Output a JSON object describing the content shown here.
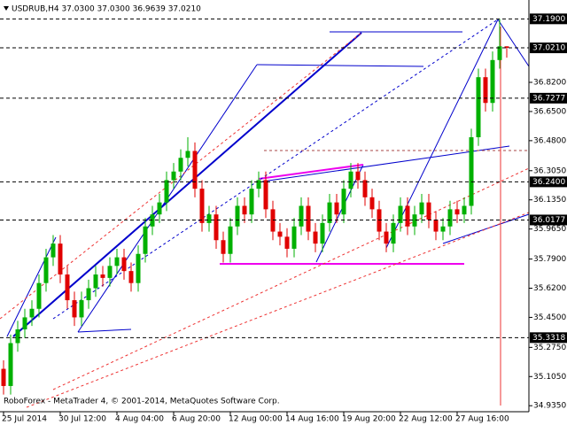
{
  "chart_data": {
    "type": "candlestick",
    "title": "USDRUB,H4 37.0300 37.0300 36.9639 37.0210",
    "footer": "RoboForex - MetaTrader 4, © 2001-2014, MetaQuotes Software Corp.",
    "categories": [
      "25 Jul 2014",
      null,
      null,
      null,
      null,
      null,
      null,
      null,
      "30 Jul 12:00",
      null,
      null,
      null,
      null,
      null,
      null,
      null,
      "4 Aug 04:00",
      null,
      null,
      null,
      null,
      null,
      null,
      null,
      "6 Aug 20:00",
      null,
      null,
      null,
      null,
      null,
      null,
      null,
      "12 Aug 00:00",
      null,
      null,
      null,
      null,
      null,
      null,
      null,
      "14 Aug 16:00",
      null,
      null,
      null,
      null,
      null,
      null,
      null,
      "19 Aug 20:00",
      null,
      null,
      null,
      null,
      null,
      null,
      null,
      "22 Aug 12:00",
      null,
      null,
      null,
      null,
      null,
      null,
      null,
      "27 Aug 16:00",
      null,
      null,
      null,
      null,
      null,
      null,
      null
    ],
    "open": [
      35.15,
      35.05,
      35.3,
      35.38,
      35.45,
      35.5,
      35.65,
      35.8,
      35.88,
      35.7,
      35.55,
      35.45,
      35.55,
      35.62,
      35.7,
      35.68,
      35.75,
      35.8,
      35.72,
      35.65,
      35.82,
      35.98,
      36.05,
      36.12,
      36.25,
      36.3,
      36.38,
      36.42,
      36.2,
      36.0,
      36.05,
      35.9,
      35.82,
      35.98,
      36.1,
      36.05,
      36.2,
      36.25,
      36.08,
      35.95,
      35.92,
      35.85,
      35.98,
      36.1,
      35.95,
      35.88,
      36.0,
      36.12,
      36.05,
      36.2,
      36.3,
      36.25,
      36.15,
      36.08,
      35.95,
      35.88,
      36.0,
      36.1,
      35.98,
      36.05,
      36.12,
      36.02,
      35.95,
      35.98,
      36.08,
      36.05,
      36.1,
      36.5,
      36.85,
      36.7,
      36.95,
      37.03
    ],
    "high": [
      35.2,
      35.35,
      35.43,
      35.5,
      35.55,
      35.7,
      35.85,
      35.93,
      35.93,
      35.75,
      35.6,
      35.6,
      35.67,
      35.75,
      35.75,
      35.8,
      35.85,
      35.85,
      35.77,
      35.87,
      36.03,
      36.1,
      36.17,
      36.3,
      36.35,
      36.43,
      36.5,
      36.47,
      36.25,
      36.1,
      36.1,
      35.95,
      36.03,
      36.15,
      36.15,
      36.25,
      36.3,
      36.3,
      36.13,
      36.0,
      35.97,
      36.03,
      36.15,
      36.15,
      36.0,
      36.05,
      36.17,
      36.17,
      36.25,
      36.35,
      36.35,
      36.3,
      36.2,
      36.13,
      36.0,
      36.05,
      36.15,
      36.15,
      36.1,
      36.17,
      36.17,
      36.07,
      36.03,
      36.13,
      36.13,
      36.15,
      36.55,
      36.9,
      36.9,
      37.0,
      37.19,
      37.03
    ],
    "low": [
      35.0,
      35.0,
      35.25,
      35.33,
      35.4,
      35.45,
      35.6,
      35.75,
      35.65,
      35.5,
      35.4,
      35.4,
      35.5,
      35.57,
      35.63,
      35.63,
      35.7,
      35.67,
      35.6,
      35.6,
      35.77,
      35.93,
      36.0,
      36.07,
      36.2,
      36.25,
      36.33,
      36.15,
      35.95,
      35.95,
      35.85,
      35.77,
      35.77,
      35.93,
      36.0,
      36.0,
      36.15,
      36.03,
      35.9,
      35.87,
      35.8,
      35.8,
      35.93,
      35.9,
      35.83,
      35.83,
      35.95,
      36.0,
      36.0,
      36.15,
      36.2,
      36.1,
      36.03,
      35.9,
      35.83,
      35.83,
      35.95,
      35.93,
      35.93,
      36.0,
      35.97,
      35.9,
      35.9,
      35.93,
      36.0,
      36.0,
      36.05,
      36.45,
      36.65,
      36.65,
      36.9,
      36.9639
    ],
    "close": [
      35.05,
      35.3,
      35.38,
      35.45,
      35.5,
      35.65,
      35.8,
      35.88,
      35.7,
      35.55,
      35.45,
      35.55,
      35.62,
      35.7,
      35.68,
      35.75,
      35.8,
      35.72,
      35.65,
      35.82,
      35.98,
      36.05,
      36.12,
      36.25,
      36.3,
      36.38,
      36.42,
      36.2,
      36.0,
      36.05,
      35.9,
      35.82,
      35.98,
      36.1,
      36.05,
      36.2,
      36.25,
      36.08,
      35.95,
      35.92,
      35.85,
      35.98,
      36.1,
      35.95,
      35.88,
      36.0,
      36.12,
      36.05,
      36.2,
      36.3,
      36.25,
      36.15,
      36.08,
      35.95,
      35.88,
      36.0,
      36.1,
      35.98,
      36.05,
      36.12,
      36.02,
      35.95,
      35.98,
      36.08,
      36.05,
      36.1,
      36.5,
      36.85,
      36.7,
      36.95,
      37.03,
      37.021
    ],
    "up_color": "#00b000",
    "down_color": "#e00000",
    "ylim": [
      34.9,
      37.3
    ],
    "yticks": [
      {
        "value": 36.82,
        "label": "36.8200"
      },
      {
        "value": 36.65,
        "label": "36.6500"
      },
      {
        "value": 36.48,
        "label": "36.4800"
      },
      {
        "value": 36.305,
        "label": "36.3050"
      },
      {
        "value": 36.135,
        "label": "36.1350"
      },
      {
        "value": 35.965,
        "label": "35.9650"
      },
      {
        "value": 35.79,
        "label": "35.7900"
      },
      {
        "value": 35.62,
        "label": "35.6200"
      },
      {
        "value": 35.45,
        "label": "35.4500"
      },
      {
        "value": 35.275,
        "label": "35.2750"
      },
      {
        "value": 35.105,
        "label": "35.1050"
      },
      {
        "value": 34.935,
        "label": "34.9350"
      }
    ],
    "levels": [
      {
        "value": 37.19,
        "label": "37.1900"
      },
      {
        "value": 37.021,
        "label": "37.0210"
      },
      {
        "value": 36.7277,
        "label": "36.7277"
      },
      {
        "value": 36.24,
        "label": "36.2400"
      },
      {
        "value": 36.0177,
        "label": "36.0177"
      },
      {
        "value": 35.3318,
        "label": "35.3318"
      }
    ]
  }
}
